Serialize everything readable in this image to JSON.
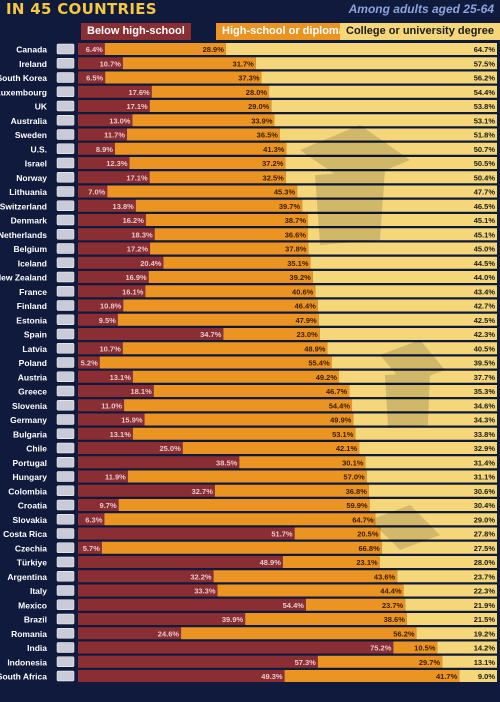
{
  "header": {
    "title": "IN 45 COUNTRIES",
    "subtitle": "Among adults aged 25-64"
  },
  "colors": {
    "below": "#8b2e33",
    "high_school": "#ec9422",
    "college": "#f5d77a",
    "background": "#0f1a3d"
  },
  "chart_data": {
    "type": "bar",
    "stacked": true,
    "orientation": "horizontal",
    "xlim": [
      0,
      100
    ],
    "legend_position": "top",
    "categories": [
      "Canada",
      "Ireland",
      "South Korea",
      "Luxembourg",
      "UK",
      "Australia",
      "Sweden",
      "U.S.",
      "Israel",
      "Norway",
      "Lithuania",
      "Switzerland",
      "Denmark",
      "Netherlands",
      "Belgium",
      "Iceland",
      "New Zealand",
      "France",
      "Finland",
      "Estonia",
      "Spain",
      "Latvia",
      "Poland",
      "Austria",
      "Greece",
      "Slovenia",
      "Germany",
      "Bulgaria",
      "Chile",
      "Portugal",
      "Hungary",
      "Colombia",
      "Croatia",
      "Slovakia",
      "Costa Rica",
      "Czechia",
      "Türkiye",
      "Argentina",
      "Italy",
      "Mexico",
      "Brazil",
      "Romania",
      "India",
      "Indonesia",
      "South Africa"
    ],
    "flags": [
      "canada",
      "ireland",
      "south-korea",
      "luxembourg",
      "uk",
      "australia",
      "sweden",
      "us",
      "israel",
      "norway",
      "lithuania",
      "switzerland",
      "denmark",
      "netherlands",
      "belgium",
      "iceland",
      "new-zealand",
      "france",
      "finland",
      "estonia",
      "spain",
      "latvia",
      "poland",
      "austria",
      "greece",
      "slovenia",
      "germany",
      "bulgaria",
      "chile",
      "portugal",
      "hungary",
      "colombia",
      "croatia",
      "slovakia",
      "costa-rica",
      "czechia",
      "turkiye",
      "argentina",
      "italy",
      "mexico",
      "brazil",
      "romania",
      "india",
      "indonesia",
      "south-africa"
    ],
    "series": [
      {
        "name": "Below high-school",
        "values": [
          6.4,
          10.7,
          6.5,
          17.6,
          17.1,
          13.0,
          11.7,
          8.9,
          12.3,
          17.1,
          7.0,
          13.8,
          16.2,
          18.3,
          17.2,
          20.4,
          16.9,
          16.1,
          10.8,
          9.5,
          34.7,
          10.7,
          5.2,
          13.1,
          18.1,
          11.0,
          15.9,
          13.1,
          25.0,
          38.5,
          11.9,
          32.7,
          9.7,
          6.3,
          51.7,
          5.7,
          48.9,
          32.2,
          33.3,
          54.4,
          39.9,
          24.6,
          75.2,
          57.3,
          49.3
        ]
      },
      {
        "name": "High-school or diploma",
        "values": [
          28.9,
          31.7,
          37.3,
          28.0,
          29.0,
          33.9,
          36.5,
          41.3,
          37.2,
          32.5,
          45.3,
          39.7,
          38.7,
          36.6,
          37.8,
          35.1,
          39.2,
          40.6,
          46.4,
          47.9,
          23.0,
          48.9,
          55.4,
          49.2,
          46.7,
          54.4,
          49.9,
          53.1,
          42.1,
          30.1,
          57.0,
          36.8,
          59.9,
          64.7,
          20.5,
          66.8,
          23.1,
          43.6,
          44.4,
          23.7,
          38.6,
          56.2,
          10.5,
          29.7,
          41.7
        ]
      },
      {
        "name": "College or university degree",
        "values": [
          64.7,
          57.5,
          56.2,
          54.4,
          53.8,
          53.1,
          51.8,
          50.7,
          50.5,
          50.4,
          47.7,
          46.5,
          45.1,
          45.1,
          45.0,
          44.5,
          44.0,
          43.4,
          42.7,
          42.5,
          42.3,
          40.5,
          39.5,
          37.7,
          35.3,
          34.6,
          34.3,
          33.8,
          32.9,
          31.4,
          31.1,
          30.6,
          30.4,
          29.0,
          27.8,
          27.5,
          28.0,
          23.7,
          22.3,
          21.9,
          21.5,
          19.2,
          14.2,
          13.1,
          9.0
        ]
      }
    ]
  }
}
